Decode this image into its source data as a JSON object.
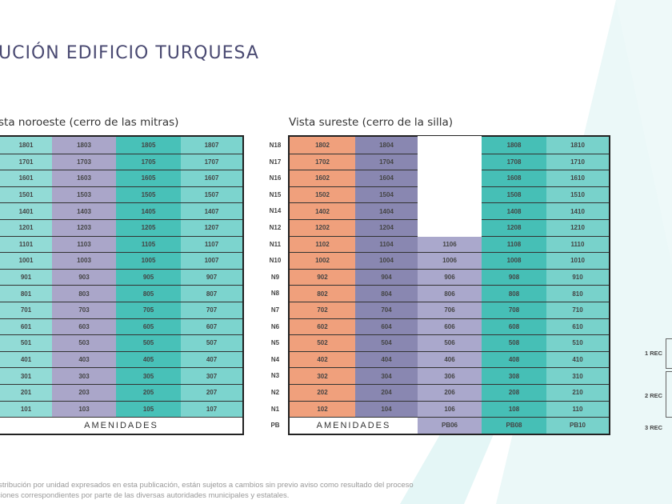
{
  "title": "UCIÓN EDIFICIO TURQUESA",
  "left": {
    "subtitle": "sta noroeste (cerro de las mitras)",
    "colors": [
      "#92dbd6",
      "#aaa6c9",
      "#48c1b8",
      "#7cd4ce"
    ],
    "rows": [
      [
        "1801",
        "1803",
        "1805",
        "1807"
      ],
      [
        "1701",
        "1703",
        "1705",
        "1707"
      ],
      [
        "1601",
        "1603",
        "1605",
        "1607"
      ],
      [
        "1501",
        "1503",
        "1505",
        "1507"
      ],
      [
        "1401",
        "1403",
        "1405",
        "1407"
      ],
      [
        "1201",
        "1203",
        "1205",
        "1207"
      ],
      [
        "1101",
        "1103",
        "1105",
        "1107"
      ],
      [
        "1001",
        "1003",
        "1005",
        "1007"
      ],
      [
        "901",
        "903",
        "905",
        "907"
      ],
      [
        "801",
        "803",
        "805",
        "807"
      ],
      [
        "701",
        "703",
        "705",
        "707"
      ],
      [
        "601",
        "603",
        "605",
        "607"
      ],
      [
        "501",
        "503",
        "505",
        "507"
      ],
      [
        "401",
        "403",
        "405",
        "407"
      ],
      [
        "301",
        "303",
        "305",
        "307"
      ],
      [
        "201",
        "203",
        "205",
        "207"
      ],
      [
        "101",
        "103",
        "105",
        "107"
      ]
    ],
    "amenities": "AMENIDADES"
  },
  "right": {
    "subtitle": "Vista sureste (cerro de la silla)",
    "colors": [
      "#f0a07c",
      "#8987b1",
      "#aaa8cc",
      "#46bfb6",
      "#78d2cb"
    ],
    "levels": [
      "N18",
      "N17",
      "N16",
      "N15",
      "N14",
      "N12",
      "N11",
      "N10",
      "N9",
      "N8",
      "N7",
      "N6",
      "N5",
      "N4",
      "N3",
      "N2",
      "N1",
      "PB"
    ],
    "rows": [
      [
        "1802",
        "1804",
        null,
        "1808",
        "1810"
      ],
      [
        "1702",
        "1704",
        null,
        "1708",
        "1710"
      ],
      [
        "1602",
        "1604",
        null,
        "1608",
        "1610"
      ],
      [
        "1502",
        "1504",
        null,
        "1508",
        "1510"
      ],
      [
        "1402",
        "1404",
        null,
        "1408",
        "1410"
      ],
      [
        "1202",
        "1204",
        null,
        "1208",
        "1210"
      ],
      [
        "1102",
        "1104",
        "1106",
        "1108",
        "1110"
      ],
      [
        "1002",
        "1004",
        "1006",
        "1008",
        "1010"
      ],
      [
        "902",
        "904",
        "906",
        "908",
        "910"
      ],
      [
        "802",
        "804",
        "806",
        "808",
        "810"
      ],
      [
        "702",
        "704",
        "706",
        "708",
        "710"
      ],
      [
        "602",
        "604",
        "606",
        "608",
        "610"
      ],
      [
        "502",
        "504",
        "506",
        "508",
        "510"
      ],
      [
        "402",
        "404",
        "406",
        "408",
        "410"
      ],
      [
        "302",
        "304",
        "306",
        "308",
        "310"
      ],
      [
        "202",
        "204",
        "206",
        "208",
        "210"
      ],
      [
        "102",
        "104",
        "106",
        "108",
        "110"
      ]
    ],
    "pb": {
      "amenities": "AMENIDADES",
      "units": [
        "PB06",
        "PB08",
        "PB10"
      ]
    }
  },
  "legend": [
    "1 REC",
    "2 REC",
    "3 REC"
  ],
  "footer": [
    "istribución por unidad expresados en esta publicación, están sujetos a cambios sin previo aviso como resultado del proceso",
    "ciones correspondientes por parte de las diversas autoridades municipales y estatales."
  ]
}
